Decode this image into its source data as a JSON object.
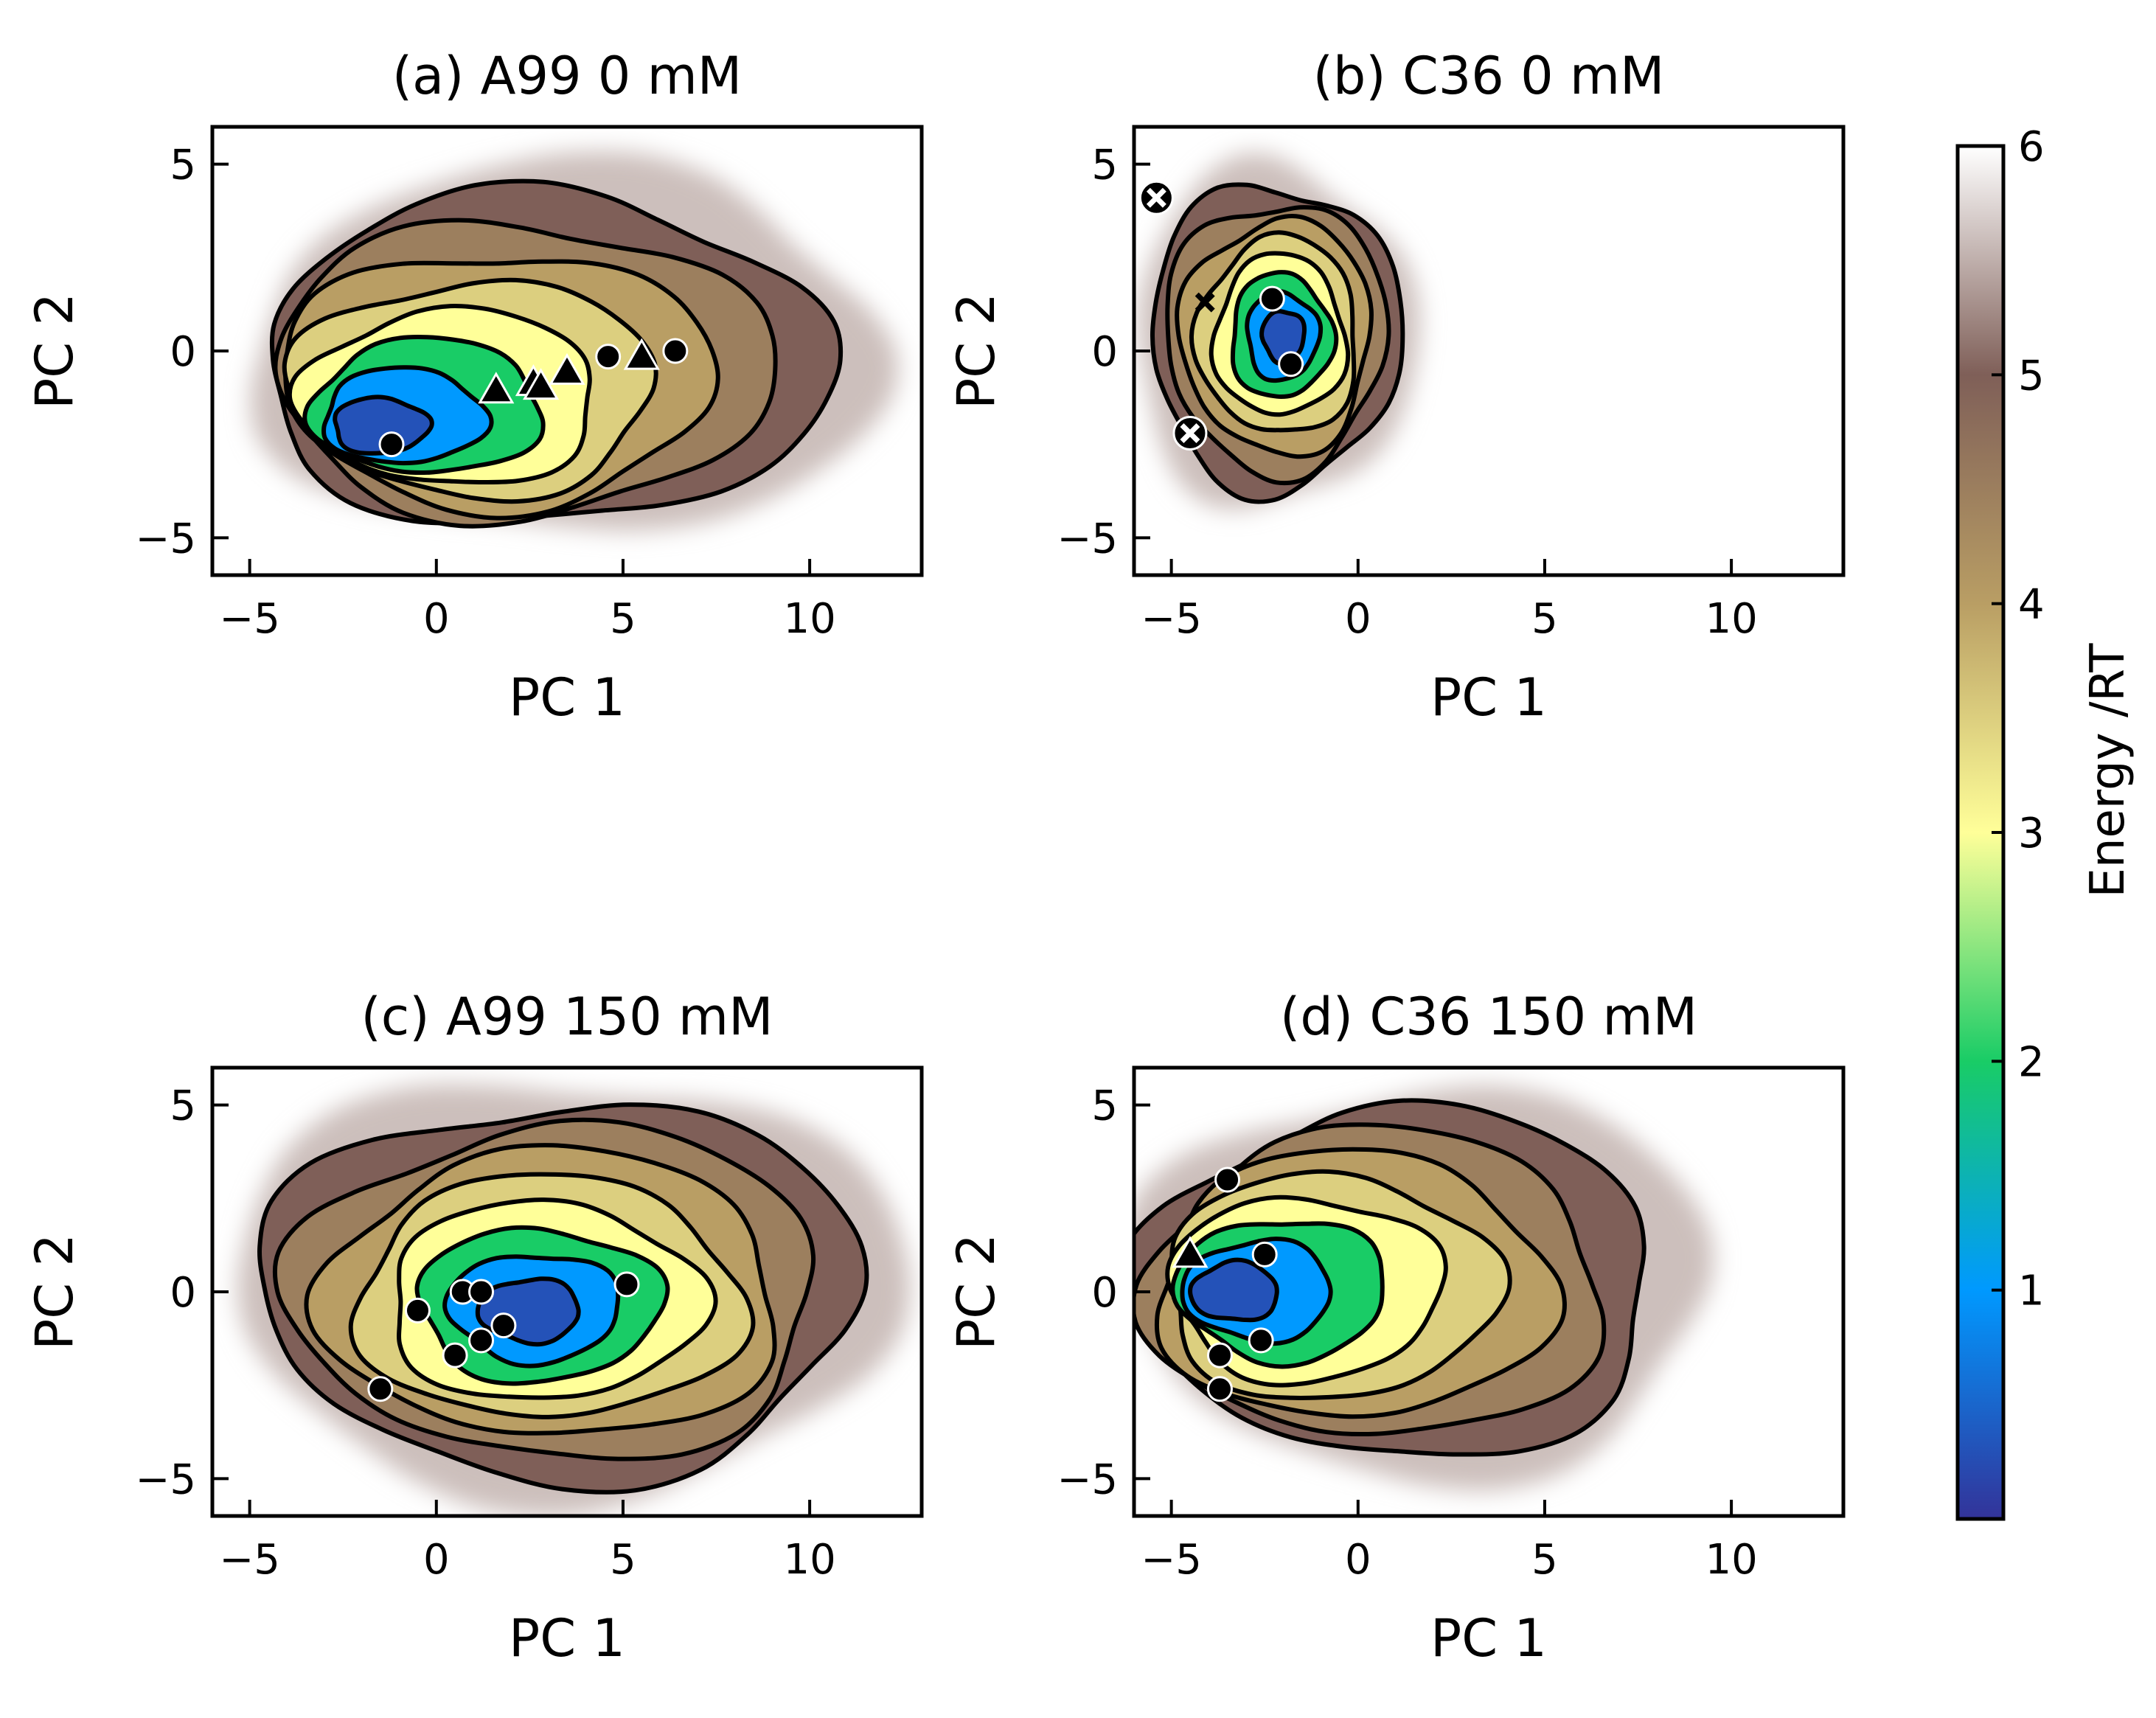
{
  "chart_data": [
    {
      "type": "heatmap",
      "subtype": "free-energy contour map",
      "title": "(a) A99 0 mM",
      "xlabel": "PC 1",
      "ylabel": "PC 2",
      "xlim": [
        -6,
        13
      ],
      "ylim": [
        -6,
        6
      ],
      "xticks": [
        -5,
        0,
        5,
        10
      ],
      "yticks": [
        -5,
        0,
        5
      ],
      "xtick_labels": [
        "−5",
        "0",
        "5",
        "10"
      ],
      "ytick_labels": [
        "−5",
        "0",
        "5"
      ],
      "minimum": [
        -1.5,
        -2.0
      ],
      "region": {
        "x": [
          -5.0,
          12.0
        ],
        "y": [
          -5.0,
          5.0
        ]
      },
      "markers": [
        {
          "shape": "circle",
          "x": -1.2,
          "y": -2.5
        },
        {
          "shape": "circle",
          "x": 4.6,
          "y": -0.15
        },
        {
          "shape": "circle",
          "x": 6.4,
          "y": 0.0
        },
        {
          "shape": "triangle",
          "x": 1.6,
          "y": -1.05
        },
        {
          "shape": "triangle",
          "x": 2.6,
          "y": -0.85
        },
        {
          "shape": "triangle",
          "x": 2.8,
          "y": -0.95
        },
        {
          "shape": "triangle",
          "x": 3.5,
          "y": -0.55
        },
        {
          "shape": "triangle",
          "x": 5.5,
          "y": -0.15
        }
      ]
    },
    {
      "type": "heatmap",
      "subtype": "free-energy contour map",
      "title": "(b) C36 0 mM",
      "xlabel": "PC 1",
      "ylabel": "PC 2",
      "xlim": [
        -6,
        13
      ],
      "ylim": [
        -6,
        6
      ],
      "xticks": [
        -5,
        0,
        5,
        10
      ],
      "yticks": [
        -5,
        0,
        5
      ],
      "xtick_labels": [
        "−5",
        "0",
        "5",
        "10"
      ],
      "ytick_labels": [
        "−5",
        "0",
        "5"
      ],
      "minimum": [
        -2.0,
        0.4
      ],
      "region": {
        "x": [
          -6.0,
          1.5
        ],
        "y": [
          -4.2,
          5.0
        ]
      },
      "markers": [
        {
          "shape": "circle",
          "x": -2.3,
          "y": 1.4
        },
        {
          "shape": "circle",
          "x": -1.8,
          "y": -0.35
        },
        {
          "shape": "x",
          "x": -4.1,
          "y": 1.3
        },
        {
          "shape": "circle-x",
          "x": -5.4,
          "y": 4.1
        },
        {
          "shape": "circle-x",
          "x": -4.5,
          "y": -2.2
        }
      ]
    },
    {
      "type": "heatmap",
      "subtype": "free-energy contour map",
      "title": "(c) A99 150 mM",
      "xlabel": "PC 1",
      "ylabel": "PC 2",
      "xlim": [
        -6,
        13
      ],
      "ylim": [
        -6,
        6
      ],
      "xticks": [
        -5,
        0,
        5,
        10
      ],
      "yticks": [
        -5,
        0,
        5
      ],
      "xtick_labels": [
        "−5",
        "0",
        "5",
        "10"
      ],
      "ytick_labels": [
        "−5",
        "0",
        "5"
      ],
      "minimum": [
        2.5,
        -0.5
      ],
      "region": {
        "x": [
          -5.5,
          12.5
        ],
        "y": [
          -5.5,
          5.8
        ]
      },
      "markers": [
        {
          "shape": "circle",
          "x": -1.5,
          "y": -2.6
        },
        {
          "shape": "circle",
          "x": -0.5,
          "y": -0.5
        },
        {
          "shape": "circle",
          "x": 0.7,
          "y": 0.0
        },
        {
          "shape": "circle",
          "x": 1.2,
          "y": 0.0
        },
        {
          "shape": "circle",
          "x": 0.5,
          "y": -1.7
        },
        {
          "shape": "circle",
          "x": 1.2,
          "y": -1.3
        },
        {
          "shape": "circle",
          "x": 1.8,
          "y": -0.9
        },
        {
          "shape": "circle",
          "x": 5.1,
          "y": 0.2
        }
      ]
    },
    {
      "type": "heatmap",
      "subtype": "free-energy contour map",
      "title": "(d) C36 150 mM",
      "xlabel": "PC 1",
      "ylabel": "PC 2",
      "xlim": [
        -6,
        13
      ],
      "ylim": [
        -6,
        6
      ],
      "xticks": [
        -5,
        0,
        5,
        10
      ],
      "yticks": [
        -5,
        0,
        5
      ],
      "xtick_labels": [
        "−5",
        "0",
        "5",
        "10"
      ],
      "ytick_labels": [
        "−5",
        "0",
        "5"
      ],
      "minimum": [
        -3.3,
        0.0
      ],
      "region": {
        "x": [
          -6.0,
          9.5
        ],
        "y": [
          -5.0,
          5.5
        ]
      },
      "markers": [
        {
          "shape": "circle",
          "x": -3.5,
          "y": 3.0
        },
        {
          "shape": "circle",
          "x": -2.5,
          "y": 1.0
        },
        {
          "shape": "circle",
          "x": -3.7,
          "y": -1.7
        },
        {
          "shape": "circle",
          "x": -2.6,
          "y": -1.3
        },
        {
          "shape": "circle",
          "x": -3.7,
          "y": -2.6
        },
        {
          "shape": "triangle",
          "x": -4.5,
          "y": 1.0
        }
      ]
    }
  ],
  "colorbar": {
    "label": "Energy /RT",
    "range": [
      0,
      6
    ],
    "ticks": [
      1,
      2,
      3,
      4,
      5,
      6
    ],
    "tick_labels": [
      "1",
      "2",
      "3",
      "4",
      "5",
      "6"
    ],
    "colors": [
      "#333399",
      "#0099ff",
      "#19cc66",
      "#ffff99",
      "#b99e64",
      "#7f5f58",
      "#ffffff"
    ],
    "contour_levels": [
      1,
      2,
      3,
      3.5,
      4,
      4.5,
      5
    ]
  }
}
